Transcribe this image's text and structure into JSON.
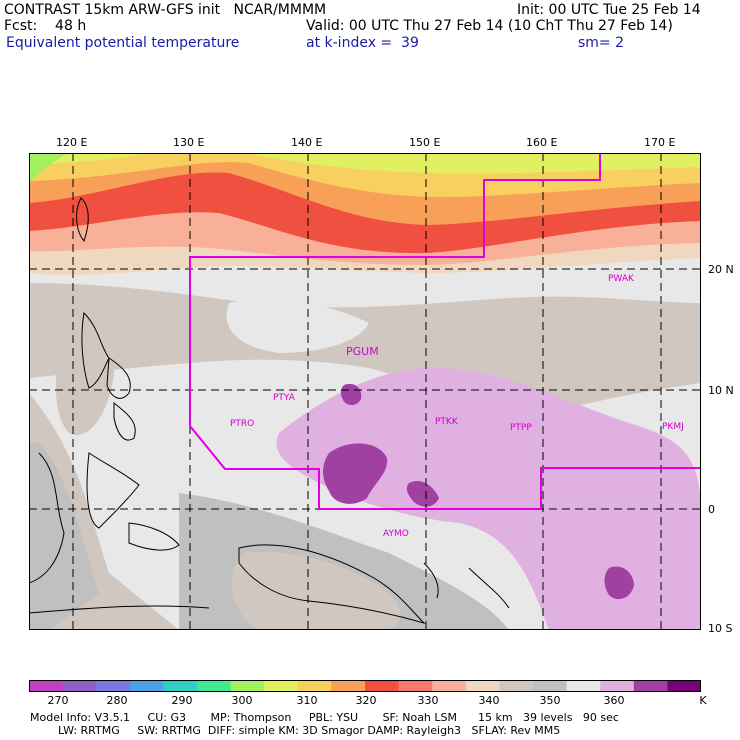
{
  "header": {
    "line1_left": "CONTRAST 15km ARW-GFS init   NCAR/MMMM",
    "line1_right": "Init: 00 UTC Tue 25 Feb 14",
    "line2_left": "Fcst:    48 h",
    "line2_right": "Valid: 00 UTC Thu 27 Feb 14 (10 ChT Thu 27 Feb 14)",
    "line3_left": "Equivalent potential temperature",
    "line3_mid": "at k-index =  39",
    "line3_right": "sm= 2"
  },
  "map": {
    "lon_labels": [
      "120 E",
      "130 E",
      "140 E",
      "150 E",
      "160 E",
      "170 E"
    ],
    "lat_labels": [
      "20 N",
      "10 N",
      "0",
      "10 S"
    ],
    "stations": [
      "PGUM",
      "PTYA",
      "PTRO",
      "PTKK",
      "PTPP",
      "PKMJ",
      "PWAK",
      "AYMO"
    ]
  },
  "colorbar": {
    "unit": "K",
    "ticks": [
      "270",
      "280",
      "290",
      "300",
      "310",
      "320",
      "330",
      "340",
      "350",
      "360"
    ],
    "colors": [
      "#c040c0",
      "#9060c8",
      "#7878e0",
      "#50a0e8",
      "#30d0c0",
      "#40e890",
      "#a0f060",
      "#e0f060",
      "#f8d060",
      "#f8a058",
      "#f05040",
      "#f87870",
      "#f8b098",
      "#f0d8c0",
      "#d0c8c0",
      "#c0c0c0",
      "#e8e8e8",
      "#e0b0e0",
      "#a040a0",
      "#780078"
    ]
  },
  "footer": {
    "line1": "Model Info: V3.5.1     CU: G3       MP: Thompson     PBL: YSU       SF: Noah LSM      15 km   39 levels   90 sec",
    "line2": "        LW: RRTMG     SW: RRTMG  DIFF: simple KM: 3D Smagor DAMP: Rayleigh3   SFLAY: Rev MM5"
  }
}
